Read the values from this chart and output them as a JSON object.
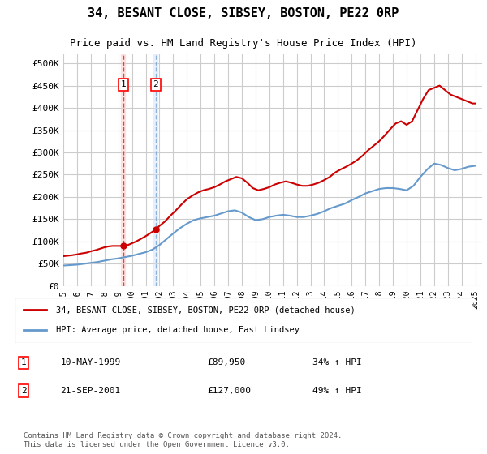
{
  "title": "34, BESANT CLOSE, SIBSEY, BOSTON, PE22 0RP",
  "subtitle": "Price paid vs. HM Land Registry's House Price Index (HPI)",
  "ylabel_ticks": [
    "£0",
    "£50K",
    "£100K",
    "£150K",
    "£200K",
    "£250K",
    "£300K",
    "£350K",
    "£400K",
    "£450K",
    "£500K"
  ],
  "ytick_values": [
    0,
    50000,
    100000,
    150000,
    200000,
    250000,
    300000,
    350000,
    400000,
    450000,
    500000
  ],
  "ylim": [
    0,
    520000
  ],
  "xlim_start": 1995.0,
  "xlim_end": 2025.5,
  "transaction1": {
    "date_num": 1999.36,
    "price": 89950,
    "label": "1",
    "date_str": "10-MAY-1999",
    "hpi_pct": "34% ↑ HPI"
  },
  "transaction2": {
    "date_num": 2001.72,
    "price": 127000,
    "label": "2",
    "date_str": "21-SEP-2001",
    "hpi_pct": "49% ↑ HPI"
  },
  "legend_line1": "34, BESANT CLOSE, SIBSEY, BOSTON, PE22 0RP (detached house)",
  "legend_line2": "HPI: Average price, detached house, East Lindsey",
  "footer": "Contains HM Land Registry data © Crown copyright and database right 2024.\nThis data is licensed under the Open Government Licence v3.0.",
  "red_color": "#cc0000",
  "blue_color": "#6699cc",
  "background_color": "#ffffff",
  "grid_color": "#cccccc",
  "xtick_years": [
    1995,
    1996,
    1997,
    1998,
    1999,
    2000,
    2001,
    2002,
    2003,
    2004,
    2005,
    2006,
    2007,
    2008,
    2009,
    2010,
    2011,
    2012,
    2013,
    2014,
    2015,
    2016,
    2017,
    2018,
    2019,
    2020,
    2021,
    2022,
    2023,
    2024,
    2025
  ],
  "hpi_data_x": [
    1995.0,
    1995.5,
    1996.0,
    1996.5,
    1997.0,
    1997.5,
    1998.0,
    1998.5,
    1999.0,
    1999.5,
    2000.0,
    2000.5,
    2001.0,
    2001.5,
    2002.0,
    2002.5,
    2003.0,
    2003.5,
    2004.0,
    2004.5,
    2005.0,
    2005.5,
    2006.0,
    2006.5,
    2007.0,
    2007.5,
    2008.0,
    2008.5,
    2009.0,
    2009.5,
    2010.0,
    2010.5,
    2011.0,
    2011.5,
    2012.0,
    2012.5,
    2013.0,
    2013.5,
    2014.0,
    2014.5,
    2015.0,
    2015.5,
    2016.0,
    2016.5,
    2017.0,
    2017.5,
    2018.0,
    2018.5,
    2019.0,
    2019.5,
    2020.0,
    2020.5,
    2021.0,
    2021.5,
    2022.0,
    2022.5,
    2023.0,
    2023.5,
    2024.0,
    2024.5,
    2025.0
  ],
  "hpi_data_y": [
    46000,
    47000,
    48000,
    50000,
    52000,
    54000,
    57000,
    60000,
    62000,
    65000,
    68000,
    72000,
    76000,
    82000,
    92000,
    105000,
    118000,
    130000,
    140000,
    148000,
    152000,
    155000,
    158000,
    163000,
    168000,
    170000,
    165000,
    155000,
    148000,
    150000,
    155000,
    158000,
    160000,
    158000,
    155000,
    155000,
    158000,
    162000,
    168000,
    175000,
    180000,
    185000,
    193000,
    200000,
    208000,
    213000,
    218000,
    220000,
    220000,
    218000,
    215000,
    225000,
    245000,
    262000,
    275000,
    272000,
    265000,
    260000,
    263000,
    268000,
    270000
  ],
  "price_line_x": [
    1995.0,
    1995.3,
    1995.6,
    1996.0,
    1996.3,
    1996.7,
    1997.0,
    1997.4,
    1997.7,
    1998.0,
    1998.3,
    1998.6,
    1999.0,
    1999.36,
    1999.7,
    2000.0,
    2000.3,
    2000.6,
    2001.0,
    2001.4,
    2001.72,
    2002.0,
    2002.4,
    2002.8,
    2003.2,
    2003.6,
    2004.0,
    2004.4,
    2004.8,
    2005.2,
    2005.6,
    2006.0,
    2006.4,
    2006.8,
    2007.2,
    2007.6,
    2008.0,
    2008.4,
    2008.8,
    2009.2,
    2009.6,
    2010.0,
    2010.4,
    2010.8,
    2011.2,
    2011.6,
    2012.0,
    2012.4,
    2012.8,
    2013.2,
    2013.6,
    2014.0,
    2014.4,
    2014.8,
    2015.2,
    2015.6,
    2016.0,
    2016.4,
    2016.8,
    2017.2,
    2017.6,
    2018.0,
    2018.4,
    2018.8,
    2019.2,
    2019.6,
    2020.0,
    2020.4,
    2020.8,
    2021.2,
    2021.6,
    2022.0,
    2022.4,
    2022.8,
    2023.2,
    2023.6,
    2024.0,
    2024.4,
    2024.8,
    2025.0
  ],
  "price_line_y": [
    67000,
    68000,
    69000,
    71000,
    73000,
    75000,
    78000,
    81000,
    84000,
    87000,
    89000,
    90000,
    90000,
    89950,
    92000,
    96000,
    100000,
    105000,
    112000,
    120000,
    127000,
    135000,
    145000,
    158000,
    170000,
    183000,
    195000,
    203000,
    210000,
    215000,
    218000,
    222000,
    228000,
    235000,
    240000,
    245000,
    242000,
    232000,
    220000,
    215000,
    218000,
    222000,
    228000,
    232000,
    235000,
    232000,
    228000,
    225000,
    225000,
    228000,
    232000,
    238000,
    245000,
    255000,
    262000,
    268000,
    275000,
    283000,
    293000,
    305000,
    315000,
    325000,
    338000,
    352000,
    365000,
    370000,
    362000,
    370000,
    395000,
    420000,
    440000,
    445000,
    450000,
    440000,
    430000,
    425000,
    420000,
    415000,
    410000,
    410000
  ]
}
